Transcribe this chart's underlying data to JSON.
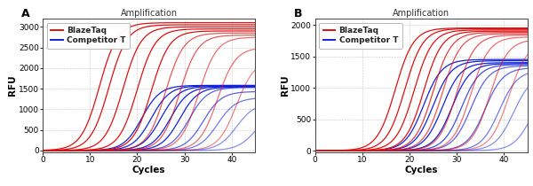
{
  "title": "Amplification",
  "xlabel": "Cycles",
  "ylabel": "RFU",
  "panel_A": {
    "label": "A",
    "ylim": [
      -50,
      3200
    ],
    "yticks": [
      0,
      500,
      1000,
      1500,
      2000,
      2500,
      3000
    ],
    "xlim": [
      0,
      45
    ],
    "xticks": [
      0,
      10,
      20,
      30,
      40
    ],
    "red_midpoints": [
      12,
      14,
      17,
      20,
      23,
      26,
      29,
      33,
      37,
      41
    ],
    "red_plateaus": [
      3100,
      3050,
      3000,
      2950,
      2900,
      2850,
      2800,
      2750,
      2500,
      2200
    ],
    "red_alphas": [
      1.0,
      1.0,
      1.0,
      1.0,
      1.0,
      0.7,
      0.7,
      0.6,
      0.6,
      0.5
    ],
    "blue_midpoints": [
      21,
      23,
      25,
      27,
      29,
      31,
      34,
      37,
      41,
      45
    ],
    "blue_plateaus": [
      1580,
      1570,
      1560,
      1550,
      1540,
      1530,
      1430,
      1280,
      1150,
      950
    ],
    "blue_alphas": [
      1.0,
      1.0,
      1.0,
      1.0,
      1.0,
      0.7,
      0.7,
      0.6,
      0.5,
      0.5
    ]
  },
  "panel_B": {
    "label": "B",
    "ylim": [
      -30,
      2100
    ],
    "yticks": [
      0,
      500,
      1000,
      1500,
      2000
    ],
    "xlim": [
      0,
      45
    ],
    "xticks": [
      0,
      10,
      20,
      30,
      40
    ],
    "red_midpoints": [
      17,
      19,
      21,
      23,
      25,
      27,
      30,
      33,
      37,
      41
    ],
    "red_plateaus": [
      1950,
      1940,
      1920,
      1900,
      1880,
      1860,
      1840,
      1810,
      1770,
      1720
    ],
    "red_alphas": [
      1.0,
      1.0,
      1.0,
      1.0,
      0.8,
      0.7,
      0.7,
      0.6,
      0.6,
      0.5
    ],
    "blue_midpoints": [
      23,
      25,
      27,
      29,
      31,
      33,
      36,
      39,
      42,
      46
    ],
    "blue_plateaus": [
      1450,
      1430,
      1400,
      1385,
      1370,
      1350,
      1320,
      1280,
      1210,
      1140
    ],
    "blue_alphas": [
      1.0,
      1.0,
      1.0,
      1.0,
      0.8,
      0.7,
      0.7,
      0.6,
      0.5,
      0.5
    ]
  },
  "red_color": "#dd1111",
  "blue_color": "#1122dd",
  "bg_color": "#ffffff",
  "grid_color": "#bbbbbb",
  "legend_label_red": "BlazeTaq",
  "legend_label_blue": "Competitor T",
  "sigmoid_k": 0.52
}
